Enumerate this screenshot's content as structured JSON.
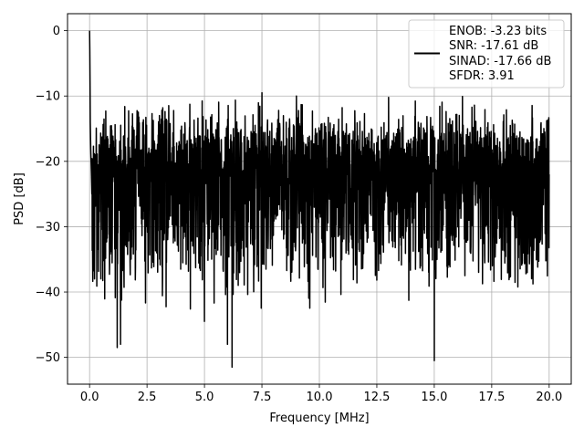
{
  "chart_data": {
    "type": "line",
    "title": "",
    "xlabel": "Frequency [MHz]",
    "ylabel": "PSD [dB]",
    "xlim": [
      -0.96,
      20.96
    ],
    "ylim": [
      -54.1,
      2.6
    ],
    "xticks": [
      0.0,
      2.5,
      5.0,
      7.5,
      10.0,
      12.5,
      15.0,
      17.5,
      20.0
    ],
    "xtick_labels": [
      "0.0",
      "2.5",
      "5.0",
      "7.5",
      "10.0",
      "12.5",
      "15.0",
      "17.5",
      "20.0"
    ],
    "yticks": [
      0,
      -10,
      -20,
      -30,
      -40,
      -50
    ],
    "ytick_labels": [
      "0",
      "−10",
      "−20",
      "−30",
      "−40",
      "−50"
    ],
    "grid": true,
    "legend": {
      "placement": "top-right",
      "lines": [
        "ENOB: -3.23 bits",
        "SNR: -17.61 dB",
        "SINAD: -17.66 dB",
        "SFDR: 3.91"
      ]
    },
    "series": [
      {
        "color": "#000000",
        "description_points": {
          "x": [
            0.0,
            0.02,
            0.05,
            0.1,
            1.2,
            1.35,
            5.0,
            6.0,
            6.2,
            7.5,
            9.0,
            15.0,
            20.0
          ],
          "y": [
            0.0,
            -8.0,
            -18.0,
            -25.0,
            -48.5,
            -48.0,
            -44.5,
            -48.0,
            -51.5,
            -9.5,
            -10.0,
            -50.5,
            -22.0
          ]
        },
        "noise_floor_db": -22,
        "peak_top_db": -13,
        "trough_bottom_db": -40
      }
    ]
  }
}
